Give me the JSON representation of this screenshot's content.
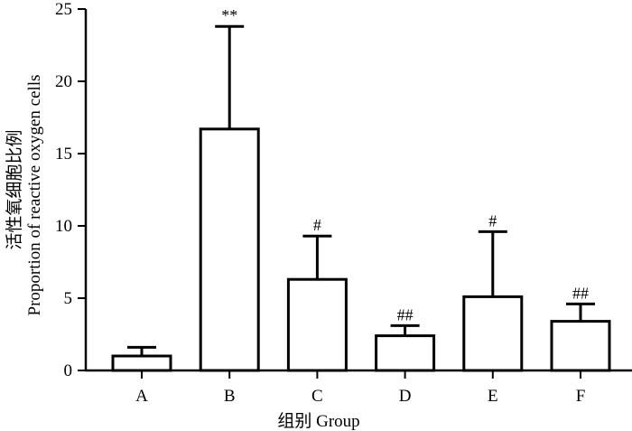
{
  "chart_data": {
    "type": "bar",
    "categories": [
      "A",
      "B",
      "C",
      "D",
      "E",
      "F"
    ],
    "values": [
      1.0,
      16.7,
      6.3,
      2.4,
      5.1,
      3.4
    ],
    "error_upper": [
      1.6,
      23.8,
      9.3,
      3.1,
      9.6,
      4.6
    ],
    "annotations": [
      "",
      "**",
      "#",
      "##",
      "#",
      "##"
    ],
    "ylim": [
      0,
      25
    ],
    "yticks": [
      0,
      5,
      10,
      15,
      20,
      25
    ],
    "xlabel": "组别 Group",
    "ylabel_cn": "活性氧细胞比例",
    "ylabel_en": "Proportion of reactive oxygen cells",
    "grid": false,
    "bar_fill": "#ffffff",
    "bar_stroke": "#000000"
  }
}
